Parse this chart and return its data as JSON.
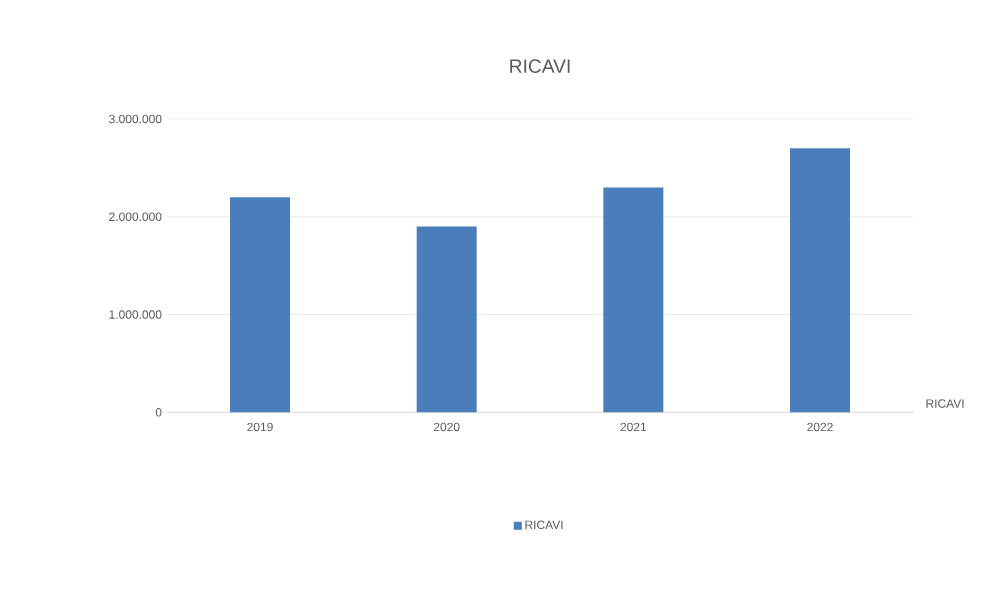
{
  "chart_data": {
    "type": "bar",
    "title": "RICAVI",
    "categories": [
      "2019",
      "2020",
      "2021",
      "2022"
    ],
    "series": [
      {
        "name": "RICAVI",
        "color": "#4a7ebb",
        "values": [
          2200000,
          1900000,
          2300000,
          2700000
        ]
      }
    ],
    "ylim": [
      0,
      3000000
    ],
    "yticks": [
      {
        "value": 0,
        "label": "0"
      },
      {
        "value": 1000000,
        "label": "1.000.000"
      },
      {
        "value": 2000000,
        "label": "2.000.000"
      },
      {
        "value": 3000000,
        "label": "3.000.000"
      }
    ],
    "grid": "y",
    "legend": "bottom",
    "annotations": [
      "RICAVI"
    ]
  }
}
